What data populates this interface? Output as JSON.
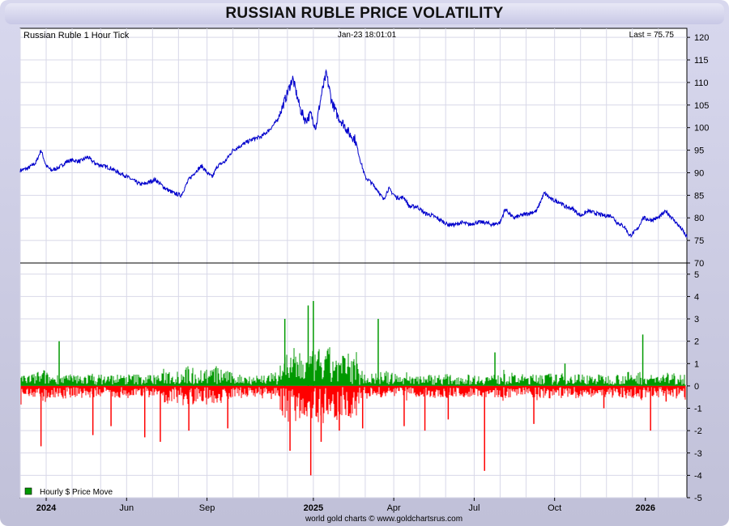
{
  "title": "RUSSIAN RUBLE PRICE VOLATILITY",
  "colors": {
    "price_line": "#0000cc",
    "up_bar": "#009900",
    "down_bar": "#ff0000",
    "grid": "#d8d8e8",
    "frame_bg": "#c8c8e0"
  },
  "chart_data": [
    {
      "type": "line",
      "label_left": "Russian Ruble 1 Hour Tick",
      "label_center": "Jan-23  18:01:01",
      "label_right": "Last = 75.75",
      "ylim": [
        70,
        122
      ],
      "yticks": [
        70,
        75,
        80,
        85,
        90,
        95,
        100,
        105,
        110,
        115,
        120
      ],
      "xlim": [
        0,
        25.7
      ],
      "series": [
        {
          "x": [
            0,
            0.3,
            0.6,
            0.8,
            1.0,
            1.2,
            1.5,
            1.8,
            2.0,
            2.3,
            2.6,
            2.9,
            3.2,
            3.5,
            3.8,
            4.0,
            4.3,
            4.6,
            4.8,
            5.0,
            5.2,
            5.4,
            5.6,
            5.9,
            6.2,
            6.5,
            6.8,
            7.0,
            7.2,
            7.4,
            7.6,
            7.9,
            8.2,
            8.5,
            8.8,
            9.0,
            9.3,
            9.6,
            9.9,
            10.2,
            10.5,
            10.8,
            11.0,
            11.2,
            11.4,
            11.6,
            11.8,
            12.0,
            12.2,
            12.3,
            12.5,
            12.7,
            12.9,
            13.1,
            13.3,
            13.5,
            13.8,
            14.0,
            14.2,
            14.5,
            14.8,
            15.0,
            15.3,
            15.6,
            15.9,
            16.2,
            16.5,
            16.8,
            17.0,
            17.3,
            17.6,
            17.9,
            18.2,
            18.5,
            18.7,
            19.0,
            19.3,
            19.6,
            19.9,
            20.2,
            20.5,
            20.8,
            21.0,
            21.3,
            21.6,
            21.9,
            22.2,
            22.5,
            22.8,
            23.0,
            23.3,
            23.5,
            23.8,
            24.0,
            24.3,
            24.6,
            24.9,
            25.2,
            25.5,
            25.7
          ],
          "y": [
            90.5,
            91.0,
            92.2,
            95.0,
            91.5,
            90.5,
            91.2,
            92.5,
            92.8,
            92.5,
            93.5,
            92.0,
            91.5,
            91.0,
            90.0,
            89.5,
            88.5,
            87.5,
            87.5,
            88.0,
            88.5,
            87.5,
            86.5,
            85.5,
            85.0,
            88.5,
            90.5,
            91.5,
            90.0,
            89.0,
            91.5,
            92.5,
            95.0,
            96.0,
            97.0,
            97.5,
            98.0,
            99.5,
            101.5,
            106.0,
            111.0,
            104.0,
            101.5,
            103.0,
            100.0,
            107.0,
            112.0,
            106.0,
            103.0,
            102.0,
            100.5,
            98.5,
            97.5,
            93.0,
            89.0,
            88.0,
            86.0,
            84.0,
            86.5,
            84.5,
            84.5,
            82.5,
            82.5,
            81.0,
            80.5,
            79.5,
            78.5,
            78.5,
            79.0,
            78.5,
            79.0,
            79.0,
            78.5,
            79.0,
            82.0,
            80.0,
            80.5,
            81.0,
            81.5,
            85.5,
            84.0,
            83.5,
            82.5,
            82.0,
            80.5,
            81.5,
            81.0,
            80.5,
            80.5,
            79.0,
            78.0,
            76.0,
            77.5,
            80.0,
            79.5,
            80.0,
            81.5,
            79.5,
            77.5,
            75.75
          ]
        }
      ]
    },
    {
      "type": "bar",
      "legend": "Hourly $ Price Move",
      "legend_position": "bottom-left",
      "ylim": [
        -5,
        5.5
      ],
      "yticks": [
        -5,
        -4,
        -3,
        -2,
        -1,
        0,
        1,
        2,
        3,
        4,
        5
      ],
      "xlim": [
        0,
        25.7
      ],
      "spikes": {
        "x": [
          0.8,
          1.5,
          2.8,
          3.5,
          4.8,
          5.4,
          6.5,
          8.0,
          10.2,
          10.4,
          11.1,
          11.2,
          11.3,
          11.6,
          12.3,
          13.2,
          13.8,
          14.8,
          15.6,
          16.5,
          17.9,
          18.3,
          19.8,
          21.0,
          22.5,
          24.0,
          24.3,
          24.9
        ],
        "y": [
          -2.7,
          2.0,
          -2.2,
          -1.8,
          -2.3,
          -2.5,
          -2.0,
          -1.9,
          3.0,
          -2.9,
          3.6,
          -4.0,
          3.8,
          -2.5,
          -2.0,
          -1.9,
          3.0,
          -1.8,
          -2.0,
          -1.5,
          -3.8,
          1.5,
          -1.7,
          1.0,
          -1.0,
          2.3,
          -2.0,
          -0.7
        ]
      }
    }
  ],
  "x_axis": {
    "ticks": [
      {
        "label": "2024",
        "x": 1.0,
        "bold": true
      },
      {
        "label": "Jun",
        "x": 4.1,
        "bold": false
      },
      {
        "label": "Sep",
        "x": 7.2,
        "bold": false
      },
      {
        "label": "2025",
        "x": 11.3,
        "bold": true
      },
      {
        "label": "Apr",
        "x": 14.4,
        "bold": false
      },
      {
        "label": "Jul",
        "x": 17.5,
        "bold": false
      },
      {
        "label": "Oct",
        "x": 20.6,
        "bold": false
      },
      {
        "label": "2026",
        "x": 24.1,
        "bold": true
      }
    ],
    "gridlines_x": [
      0.0,
      1.0,
      2.0,
      3.1,
      4.1,
      5.1,
      6.1,
      7.2,
      8.2,
      9.2,
      10.3,
      11.3,
      12.3,
      13.3,
      14.4,
      15.4,
      16.4,
      17.5,
      18.5,
      19.5,
      20.6,
      21.6,
      22.6,
      23.6,
      24.6
    ]
  },
  "footer": "world gold charts © www.goldchartsrus.com"
}
